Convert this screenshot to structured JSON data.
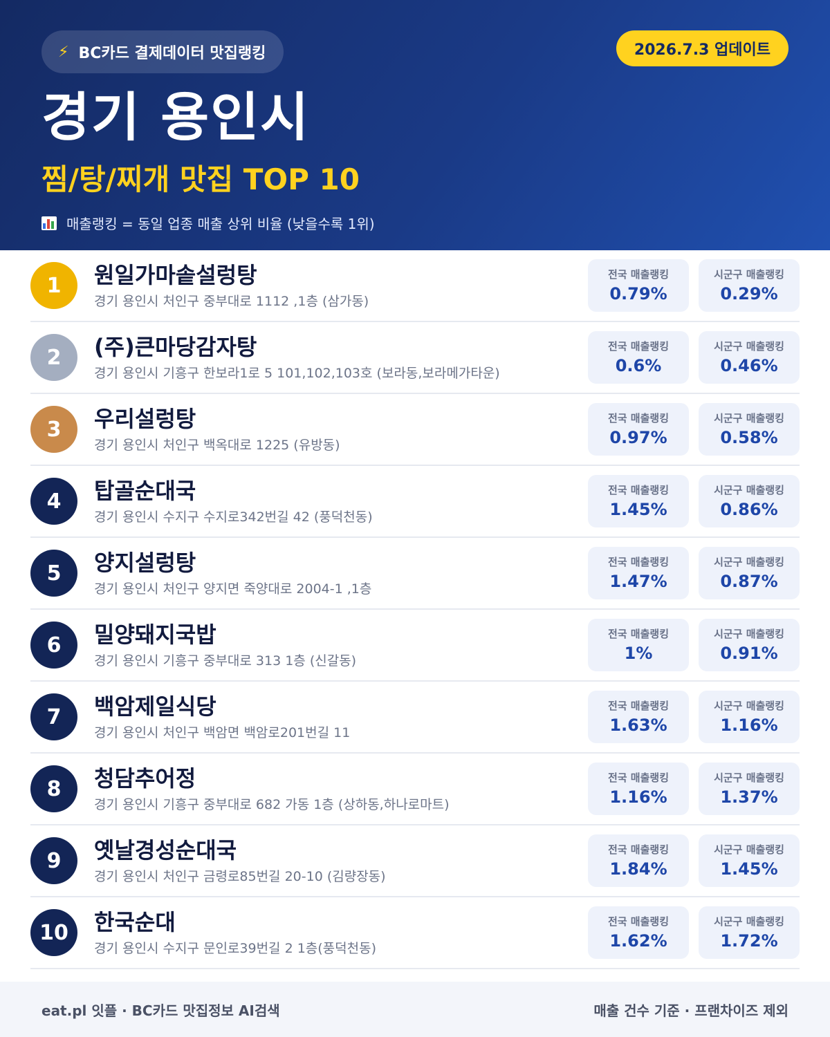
{
  "header": {
    "brand_icon": "lightning-bolt-icon",
    "brand_label": "BC카드 결제데이터 맛집랭킹",
    "update_label": "2026.7.3 업데이트",
    "city": "경기 용인시",
    "subtitle": "찜/탕/찌개 맛집 TOP 10",
    "note_icon": "bar-chart-icon",
    "note": "매출랭킹 = 동일 업종 매출 상위 비율 (낮을수록 1위)"
  },
  "labels": {
    "national": "전국 매출랭킹",
    "district": "시군구 매출랭킹"
  },
  "colors": {
    "gold": "#f0b400",
    "silver": "#a4aec0",
    "bronze": "#c98a4b",
    "navy": "#132556",
    "accent_yellow": "#ffd21f",
    "value_blue": "#1e46a8"
  },
  "restaurants": [
    {
      "rank": "1",
      "name": "원일가마솥설렁탕",
      "address": "경기 용인시 처인구 중부대로 1112 ,1층 (삼가동)",
      "national": "0.79%",
      "district": "0.29%"
    },
    {
      "rank": "2",
      "name": "(주)큰마당감자탕",
      "address": "경기 용인시 기흥구 한보라1로 5 101,102,103호 (보라동,보라메가타운)",
      "national": "0.6%",
      "district": "0.46%"
    },
    {
      "rank": "3",
      "name": "우리설렁탕",
      "address": "경기 용인시 처인구 백옥대로 1225 (유방동)",
      "national": "0.97%",
      "district": "0.58%"
    },
    {
      "rank": "4",
      "name": "탑골순대국",
      "address": "경기 용인시 수지구 수지로342번길 42 (풍덕천동)",
      "national": "1.45%",
      "district": "0.86%"
    },
    {
      "rank": "5",
      "name": "양지설렁탕",
      "address": "경기 용인시 처인구 양지면 죽양대로 2004-1 ,1층",
      "national": "1.47%",
      "district": "0.87%"
    },
    {
      "rank": "6",
      "name": "밀양돼지국밥",
      "address": "경기 용인시 기흥구 중부대로 313 1층 (신갈동)",
      "national": "1%",
      "district": "0.91%"
    },
    {
      "rank": "7",
      "name": "백암제일식당",
      "address": "경기 용인시 처인구 백암면 백암로201번길 11",
      "national": "1.63%",
      "district": "1.16%"
    },
    {
      "rank": "8",
      "name": "청담추어정",
      "address": "경기 용인시 기흥구 중부대로 682 가동 1층 (상하동,하나로마트)",
      "national": "1.16%",
      "district": "1.37%"
    },
    {
      "rank": "9",
      "name": "옛날경성순대국",
      "address": "경기 용인시 처인구 금령로85번길 20-10 (김량장동)",
      "national": "1.84%",
      "district": "1.45%"
    },
    {
      "rank": "10",
      "name": "한국순대",
      "address": "경기 용인시 수지구 문인로39번길 2 1층(풍덕천동)",
      "national": "1.62%",
      "district": "1.72%"
    }
  ],
  "footer": {
    "left": "eat.pl 잇플 · BC카드 맛집정보 AI검색",
    "right": "매출 건수 기준 · 프랜차이즈 제외"
  }
}
